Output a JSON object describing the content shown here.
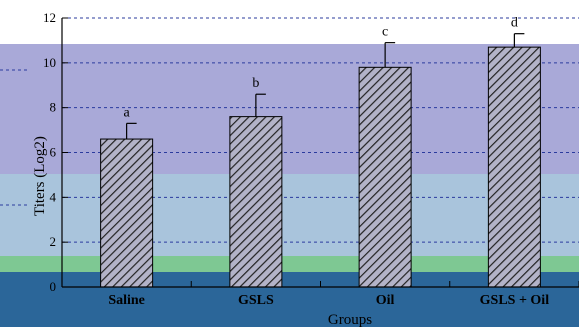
{
  "chart_data": {
    "type": "bar",
    "categories": [
      "Saline",
      "GSLS",
      "Oil",
      "GSLS + Oil"
    ],
    "values": [
      6.6,
      7.6,
      9.8,
      10.7
    ],
    "error": [
      0.7,
      1.0,
      1.1,
      0.6
    ],
    "significance": [
      "a",
      "b",
      "c",
      "d"
    ],
    "xlabel": "Groups",
    "ylabel": "Titers (Log2)",
    "ylim": [
      0,
      12
    ],
    "yticks": [
      0,
      2,
      4,
      6,
      8,
      10,
      12
    ],
    "grid": true,
    "colors": {
      "bar_fill": "#b3b3c8",
      "hatch": "#222222",
      "band_upper": "#a9a9d8",
      "band_middle": "#a9c4dc",
      "band_green": "#7ec893",
      "band_dark": "#2b6699",
      "gridline": "#2b3b9e"
    }
  }
}
